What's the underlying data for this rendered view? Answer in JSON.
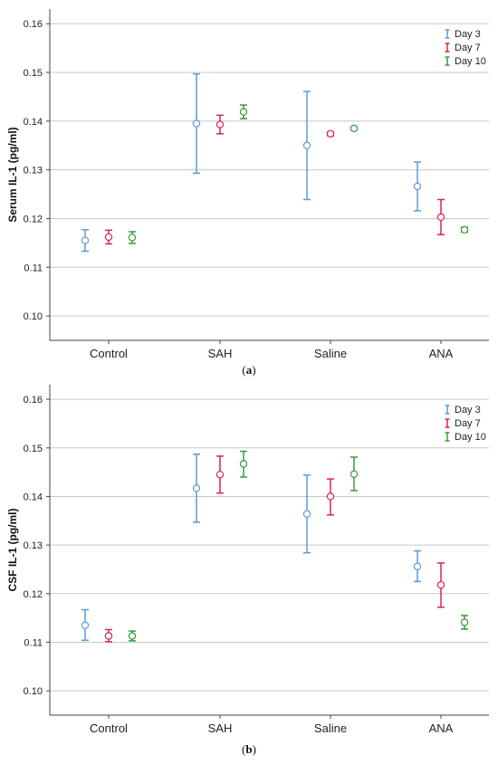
{
  "colors": {
    "Day 3": "#5b9bd5",
    "Day 7": "#d7264e",
    "Day 10": "#3a9a3a"
  },
  "chart_data": [
    {
      "type": "scatter",
      "subtype": "error-bar",
      "caption_letter": "a",
      "ylabel": "Serum IL-1 (pg/ml)",
      "xlabel": "",
      "categories": [
        "Control",
        "SAH",
        "Saline",
        "ANA"
      ],
      "ylim": [
        0.095,
        0.163
      ],
      "yticks": [
        "0.10",
        "0.11",
        "0.12",
        "0.13",
        "0.14",
        "0.15",
        "0.16"
      ],
      "grid": true,
      "legend_position": "top-right",
      "series": [
        {
          "name": "Day 3",
          "mean": [
            0.1155,
            0.1395,
            0.135,
            0.1266
          ],
          "lower": [
            0.1133,
            0.1293,
            0.1239,
            0.1216
          ],
          "upper": [
            0.1177,
            0.1497,
            0.1461,
            0.1316
          ]
        },
        {
          "name": "Day 7",
          "mean": [
            0.1162,
            0.1393,
            0.1374,
            0.1203
          ],
          "lower": [
            0.1148,
            0.1374,
            0.137,
            0.1167
          ],
          "upper": [
            0.1176,
            0.1412,
            0.1378,
            0.1239
          ]
        },
        {
          "name": "Day 10",
          "mean": [
            0.1161,
            0.1419,
            0.1385,
            0.1177
          ],
          "lower": [
            0.1149,
            0.1405,
            0.1382,
            0.1172
          ],
          "upper": [
            0.1173,
            0.1433,
            0.1388,
            0.1182
          ]
        }
      ]
    },
    {
      "type": "scatter",
      "subtype": "error-bar",
      "caption_letter": "b",
      "ylabel": "CSF IL-1 (pg/ml)",
      "xlabel": "",
      "categories": [
        "Control",
        "SAH",
        "Saline",
        "ANA"
      ],
      "ylim": [
        0.095,
        0.163
      ],
      "yticks": [
        "0.10",
        "0.11",
        "0.12",
        "0.13",
        "0.14",
        "0.15",
        "0.16"
      ],
      "grid": true,
      "legend_position": "top-right",
      "series": [
        {
          "name": "Day 3",
          "mean": [
            0.1135,
            0.1417,
            0.1364,
            0.1256
          ],
          "lower": [
            0.1104,
            0.1347,
            0.1284,
            0.1225
          ],
          "upper": [
            0.1167,
            0.1487,
            0.1444,
            0.1288
          ]
        },
        {
          "name": "Day 7",
          "mean": [
            0.1113,
            0.1445,
            0.14,
            0.1218
          ],
          "lower": [
            0.1101,
            0.1407,
            0.1362,
            0.1172
          ],
          "upper": [
            0.1126,
            0.1483,
            0.1436,
            0.1263
          ]
        },
        {
          "name": "Day 10",
          "mean": [
            0.1113,
            0.1467,
            0.1446,
            0.1141
          ],
          "lower": [
            0.1103,
            0.144,
            0.1412,
            0.1127
          ],
          "upper": [
            0.1123,
            0.1493,
            0.1481,
            0.1155
          ]
        }
      ]
    }
  ]
}
